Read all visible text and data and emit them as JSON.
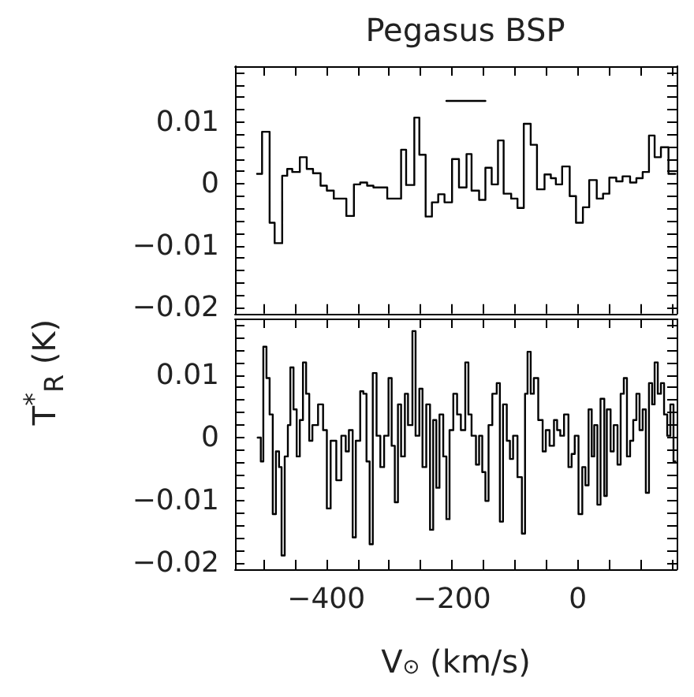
{
  "chart_data": [
    {
      "type": "step",
      "title": "Pegasus BSP",
      "ylabel": "T$^{*}$$_{R}$ (K)",
      "xlim": [
        -545,
        157
      ],
      "ylim": [
        -0.021,
        0.019
      ],
      "tick_labels": "y",
      "marker": "none",
      "xticks": [
        {
          "value": -500,
          "label": null
        },
        {
          "value": -450,
          "label": null
        },
        {
          "value": -400,
          "label": null
        },
        {
          "value": -350,
          "label": null
        },
        {
          "value": -300,
          "label": null
        },
        {
          "value": -250,
          "label": null
        },
        {
          "value": -200,
          "label": null
        },
        {
          "value": -150,
          "label": null
        },
        {
          "value": -100,
          "label": null
        },
        {
          "value": -50,
          "label": null
        },
        {
          "value": 0,
          "label": null
        },
        {
          "value": 50,
          "label": null
        },
        {
          "value": 100,
          "label": null
        },
        {
          "value": 150,
          "label": null
        }
      ],
      "yticks": [
        {
          "value": -0.02,
          "label": "−0.02"
        },
        {
          "value": -0.018,
          "label": null
        },
        {
          "value": -0.016,
          "label": null
        },
        {
          "value": -0.014,
          "label": null
        },
        {
          "value": -0.012,
          "label": null
        },
        {
          "value": -0.01,
          "label": "−0.01"
        },
        {
          "value": -0.008,
          "label": null
        },
        {
          "value": -0.006,
          "label": null
        },
        {
          "value": -0.004,
          "label": null
        },
        {
          "value": -0.002,
          "label": null
        },
        {
          "value": 0,
          "label": "0"
        },
        {
          "value": 0.002,
          "label": null
        },
        {
          "value": 0.004,
          "label": null
        },
        {
          "value": 0.006,
          "label": null
        },
        {
          "value": 0.008,
          "label": null
        },
        {
          "value": 0.01,
          "label": "0.01"
        },
        {
          "value": 0.012,
          "label": null
        },
        {
          "value": 0.014,
          "label": null
        },
        {
          "value": 0.016,
          "label": null
        },
        {
          "value": 0.018,
          "label": null
        }
      ],
      "series": [
        {
          "type": "step",
          "color": "#000000",
          "x": [
            -510,
            -502,
            -490,
            -482,
            -470,
            -462,
            -454,
            -442,
            -431,
            -421,
            -409,
            -399,
            -388,
            -368,
            -356,
            -346,
            -335,
            -325,
            -303,
            -281,
            -273,
            -260,
            -252,
            -242,
            -232,
            -222,
            -212,
            -200,
            -189,
            -177,
            -169,
            -157,
            -147,
            -137,
            -127,
            -118,
            -106,
            -96,
            -86,
            -75,
            -65,
            -53,
            -43,
            -35,
            -25,
            -13,
            -3,
            8,
            18,
            30,
            40,
            50,
            61,
            71,
            83,
            93,
            103,
            113,
            122,
            132,
            144,
            155
          ],
          "values": [
            0.0016,
            0.0084,
            -0.0063,
            -0.0096,
            0.0013,
            0.0024,
            0.0019,
            0.0043,
            0.0024,
            0.0017,
            -0.0003,
            -0.0011,
            -0.0024,
            -0.0052,
            -0.0001,
            0.0002,
            -0.0003,
            -0.0006,
            -0.0024,
            0.0055,
            -0.0002,
            0.0107,
            0.0047,
            -0.0053,
            -0.003,
            -0.0017,
            -0.003,
            0.004,
            -0.0006,
            0.0048,
            -0.0011,
            -0.0026,
            0.0026,
            -0.0001,
            0.007,
            -0.0016,
            -0.0024,
            -0.0039,
            0.0097,
            0.0063,
            -0.0009,
            0.0015,
            0.0009,
            -0.0001,
            0.0028,
            -0.002,
            -0.0063,
            -0.0038,
            0.0006,
            -0.0024,
            -0.0016,
            0.001,
            0.0004,
            0.0012,
            0.0002,
            0.0009,
            0.0019,
            0.0078,
            0.0043,
            0.0059,
            0.0016,
            0.0016
          ]
        },
        {
          "type": "line",
          "color": "#000000",
          "x": [
            -209,
            -147
          ],
          "values": [
            0.0134,
            0.0134
          ]
        }
      ]
    },
    {
      "type": "step",
      "xlabel": "V$_{⊙}$ (km/s)",
      "xlim": [
        -545,
        157
      ],
      "ylim": [
        -0.021,
        0.019
      ],
      "marker": "none",
      "xticks": [
        {
          "value": -500,
          "label": null
        },
        {
          "value": -450,
          "label": null
        },
        {
          "value": -400,
          "label": "−400"
        },
        {
          "value": -350,
          "label": null
        },
        {
          "value": -300,
          "label": null
        },
        {
          "value": -250,
          "label": null
        },
        {
          "value": -200,
          "label": "−200"
        },
        {
          "value": -150,
          "label": null
        },
        {
          "value": -100,
          "label": null
        },
        {
          "value": -50,
          "label": null
        },
        {
          "value": 0,
          "label": "0"
        },
        {
          "value": 50,
          "label": null
        },
        {
          "value": 100,
          "label": null
        },
        {
          "value": 150,
          "label": null
        }
      ],
      "yticks": [
        {
          "value": -0.02,
          "label": "−0.02"
        },
        {
          "value": -0.018,
          "label": null
        },
        {
          "value": -0.016,
          "label": null
        },
        {
          "value": -0.014,
          "label": null
        },
        {
          "value": -0.012,
          "label": null
        },
        {
          "value": -0.01,
          "label": "−0.01"
        },
        {
          "value": -0.008,
          "label": null
        },
        {
          "value": -0.006,
          "label": null
        },
        {
          "value": -0.004,
          "label": null
        },
        {
          "value": -0.002,
          "label": null
        },
        {
          "value": 0,
          "label": "0"
        },
        {
          "value": 0.002,
          "label": null
        },
        {
          "value": 0.004,
          "label": null
        },
        {
          "value": 0.006,
          "label": null
        },
        {
          "value": 0.008,
          "label": null
        },
        {
          "value": 0.01,
          "label": "0.01"
        },
        {
          "value": 0.012,
          "label": null
        },
        {
          "value": 0.014,
          "label": null
        },
        {
          "value": 0.016,
          "label": null
        },
        {
          "value": 0.018,
          "label": null
        }
      ],
      "series": [
        {
          "type": "step",
          "color": "#000000",
          "x": [
            -509,
            -504,
            -500,
            -495,
            -490,
            -485,
            -480,
            -475,
            -471,
            -466,
            -461,
            -457,
            -452,
            -447,
            -442,
            -437,
            -432,
            -427,
            -422,
            -413,
            -405,
            -399,
            -393,
            -384,
            -376,
            -369,
            -364,
            -358,
            -353,
            -346,
            -341,
            -336,
            -331,
            -326,
            -320,
            -314,
            -308,
            -301,
            -296,
            -291,
            -286,
            -281,
            -275,
            -270,
            -263,
            -258,
            -252,
            -247,
            -241,
            -235,
            -230,
            -225,
            -220,
            -214,
            -209,
            -204,
            -198,
            -192,
            -186,
            -179,
            -174,
            -169,
            -162,
            -157,
            -152,
            -147,
            -142,
            -136,
            -129,
            -124,
            -119,
            -113,
            -108,
            -103,
            -96,
            -89,
            -84,
            -80,
            -75,
            -70,
            -63,
            -56,
            -51,
            -45,
            -38,
            -33,
            -28,
            -22,
            -15,
            -10,
            -5,
            1,
            7,
            12,
            17,
            22,
            26,
            31,
            36,
            42,
            46,
            52,
            57,
            63,
            68,
            73,
            78,
            83,
            88,
            93,
            98,
            103,
            108,
            113,
            118,
            122,
            127,
            132,
            137,
            142,
            147,
            152,
            155
          ],
          "values": [
            0,
            -0.0038,
            0.0145,
            0.0095,
            0.0037,
            -0.0122,
            -0.0022,
            -0.0047,
            -0.0188,
            -0.003,
            0.002,
            0.0112,
            0.0045,
            -0.003,
            0.0028,
            0.012,
            0.007,
            -0.0005,
            0.002,
            0.0053,
            0.0012,
            -0.0113,
            -0.0005,
            -0.0068,
            0.0003,
            -0.0022,
            0.0012,
            -0.0159,
            -0.0005,
            0.0074,
            0.007,
            -0.0038,
            -0.017,
            0.0103,
            0.0003,
            -0.0047,
            0.0003,
            0.0095,
            -0.0013,
            -0.0103,
            0.0053,
            -0.003,
            0.007,
            0.002,
            0.017,
            0.0003,
            0.0078,
            -0.0047,
            0.0053,
            -0.0147,
            0.0028,
            -0.008,
            0.0037,
            -0.003,
            -0.013,
            0.0012,
            0.007,
            0.0037,
            0.0012,
            0.012,
            0.0037,
            0.0003,
            -0.0043,
            0.0003,
            -0.0055,
            -0.0101,
            0.002,
            0.007,
            0.0087,
            -0.0134,
            0.0053,
            -0.0005,
            -0.0034,
            0.0003,
            -0.0063,
            -0.0153,
            0.007,
            0.0137,
            0.007,
            0.0095,
            0.0028,
            -0.0022,
            0.0012,
            -0.0013,
            0.0028,
            0.0012,
            0.0003,
            0.0037,
            -0.0047,
            -0.0026,
            0.0003,
            -0.0122,
            -0.0047,
            -0.0076,
            0.0045,
            -0.003,
            0.002,
            -0.0107,
            0.0062,
            -0.0093,
            0.0045,
            -0.0022,
            0.002,
            -0.0043,
            0.007,
            0.0095,
            -0.003,
            -0.0005,
            0.0028,
            0.007,
            0.0012,
            0.0045,
            -0.0088,
            0.0087,
            0.0053,
            0.012,
            0.007,
            0.0087,
            0.0037,
            0.0003,
            0.0053,
            -0.0038,
            -0.0038
          ]
        }
      ]
    }
  ]
}
